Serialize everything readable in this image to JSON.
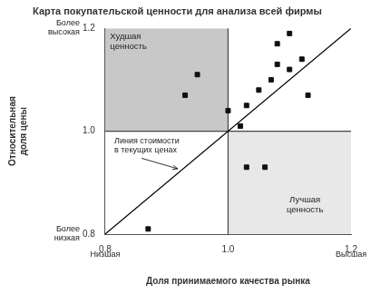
{
  "chart_data": {
    "type": "scatter",
    "title": "Карта покупательской ценности для анализа всей фирмы",
    "xlabel": "Доля принимаемого качества рынка",
    "ylabel": "Относительная\nдоля цены",
    "xlim": [
      0.8,
      1.2
    ],
    "ylim": [
      0.8,
      1.2
    ],
    "xticks": [
      0.8,
      {
        "value": 1.0,
        "label": "1.0"
      },
      1.2
    ],
    "yticks": [
      0.8,
      {
        "value": 1.0,
        "label": "1.0"
      },
      1.2
    ],
    "grid": false,
    "series": [
      {
        "type": "area",
        "color": "#c8c8c8",
        "x": [
          0.8,
          1.0,
          1.0,
          0.8
        ],
        "values": [
          1.0,
          1.0,
          1.2,
          1.2
        ]
      },
      {
        "type": "area",
        "color": "#e8e8e8",
        "x": [
          1.0,
          1.2,
          1.2,
          1.0
        ],
        "values": [
          0.8,
          0.8,
          1.0,
          1.0
        ]
      },
      {
        "type": "line",
        "color": "#444444",
        "x": [
          0.8,
          1.2
        ],
        "values": [
          1.0,
          1.0
        ]
      },
      {
        "type": "line",
        "color": "#444444",
        "x": [
          1.0,
          1.0
        ],
        "values": [
          0.8,
          1.2
        ]
      },
      {
        "type": "line",
        "color": "#000000",
        "x": [
          0.8,
          1.2
        ],
        "values": [
          0.8,
          1.2
        ]
      },
      {
        "type": "scatter",
        "color": "#111111",
        "marker": "square",
        "x": [
          0.87,
          0.93,
          0.95,
          1.0,
          1.02,
          1.03,
          1.05,
          1.07,
          1.08,
          1.08,
          1.1,
          1.1,
          1.12,
          1.13,
          1.03,
          1.06
        ],
        "values": [
          0.81,
          1.07,
          1.11,
          1.04,
          1.01,
          1.05,
          1.08,
          1.1,
          1.13,
          1.17,
          1.19,
          1.12,
          1.14,
          1.07,
          0.93,
          0.93
        ]
      }
    ],
    "annotations": [
      "Низшая",
      "Высшая",
      "Более\nвысокая",
      "Более\nнизкая",
      "Худшая\nценность",
      "Лучшая\nценность",
      "Линия стоимости\nв текущих ценах"
    ]
  }
}
